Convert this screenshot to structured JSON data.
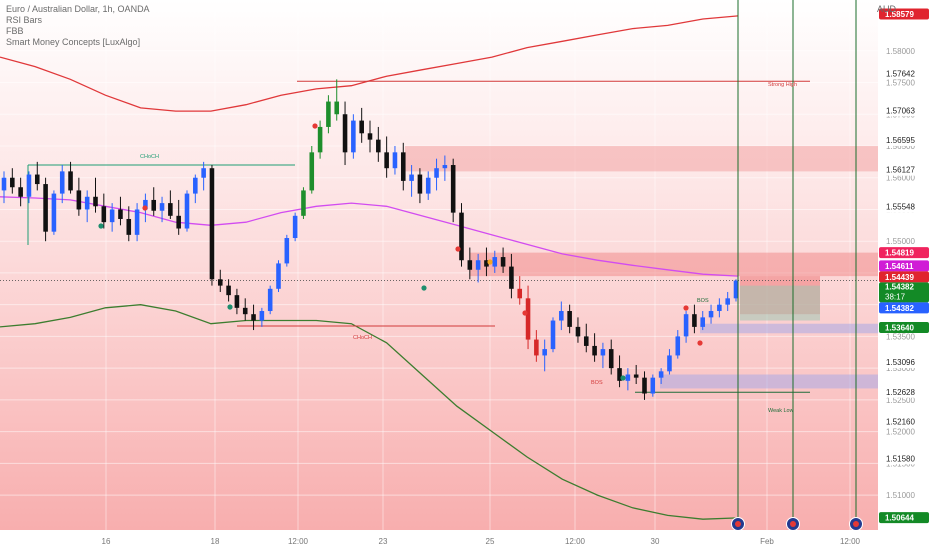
{
  "chart_data": {
    "type": "candlestick",
    "title": "Euro / Australian Dollar, 1h, OANDA",
    "indicators": [
      "RSI Bars",
      "FBB",
      "Smart Money Concepts [LuxAlgo]"
    ],
    "currency": "AUD",
    "ylim": [
      1.5045,
      1.588
    ],
    "price_axis_ticks": [
      "1.58000",
      "1.57500",
      "1.57000",
      "1.56500",
      "1.56000",
      "1.55500",
      "1.55000",
      "1.54500",
      "1.54000",
      "1.53500",
      "1.53000",
      "1.52500",
      "1.52000",
      "1.51500",
      "1.51000"
    ],
    "price_axis_levels": [
      "1.57642",
      "1.57063",
      "1.56595",
      "1.56127",
      "1.55548",
      "1.53675",
      "1.53096",
      "1.52628",
      "1.52160",
      "1.51580"
    ],
    "price_tags": [
      {
        "value": "1.58579",
        "color": "#e0242e"
      },
      {
        "value": "1.54819",
        "color": "#f0245e"
      },
      {
        "value": "1.54611",
        "color": "#d01bd6"
      },
      {
        "value": "1.54439",
        "color": "#e0242e"
      },
      {
        "value": "1.54382",
        "sub": "38:17",
        "color": "#138a26"
      },
      {
        "value": "1.54382",
        "color": "#2962ff"
      },
      {
        "value": "1.53640",
        "color": "#138a26"
      },
      {
        "value": "1.50644",
        "color": "#138a26"
      }
    ],
    "time_axis_labels": [
      "16",
      "18",
      "12:00",
      "23",
      "25",
      "12:00",
      "30",
      "Feb",
      "12:00"
    ],
    "structure_labels": [
      "CHoCH",
      "Strong High",
      "CHoCH",
      "Weak Low",
      "BOS",
      "BOS"
    ],
    "candles": [
      [
        1.558,
        1.561,
        1.556,
        1.56
      ],
      [
        1.56,
        1.5615,
        1.5575,
        1.5585
      ],
      [
        1.5585,
        1.56,
        1.5555,
        1.557
      ],
      [
        1.557,
        1.561,
        1.556,
        1.5605
      ],
      [
        1.5605,
        1.5625,
        1.558,
        1.559
      ],
      [
        1.559,
        1.56,
        1.55,
        1.5515
      ],
      [
        1.5515,
        1.558,
        1.551,
        1.5575
      ],
      [
        1.5575,
        1.562,
        1.556,
        1.561
      ],
      [
        1.561,
        1.5625,
        1.5575,
        1.558
      ],
      [
        1.558,
        1.56,
        1.554,
        1.555
      ],
      [
        1.555,
        1.558,
        1.553,
        1.557
      ],
      [
        1.557,
        1.56,
        1.5545,
        1.5555
      ],
      [
        1.5555,
        1.5575,
        1.552,
        1.553
      ],
      [
        1.553,
        1.556,
        1.5515,
        1.555
      ],
      [
        1.555,
        1.557,
        1.5525,
        1.5535
      ],
      [
        1.5535,
        1.5555,
        1.55,
        1.551
      ],
      [
        1.551,
        1.556,
        1.55,
        1.555
      ],
      [
        1.555,
        1.5575,
        1.553,
        1.5565
      ],
      [
        1.5565,
        1.5585,
        1.554,
        1.5548
      ],
      [
        1.5548,
        1.557,
        1.553,
        1.556
      ],
      [
        1.556,
        1.558,
        1.5535,
        1.554
      ],
      [
        1.554,
        1.5565,
        1.551,
        1.552
      ],
      [
        1.552,
        1.558,
        1.5515,
        1.5575
      ],
      [
        1.5575,
        1.5605,
        1.556,
        1.56
      ],
      [
        1.56,
        1.5625,
        1.558,
        1.5615
      ],
      [
        1.5615,
        1.562,
        1.543,
        1.544
      ],
      [
        1.544,
        1.5455,
        1.542,
        1.543
      ],
      [
        1.543,
        1.544,
        1.5405,
        1.5415
      ],
      [
        1.5415,
        1.5425,
        1.5385,
        1.5395
      ],
      [
        1.5395,
        1.541,
        1.5375,
        1.5385
      ],
      [
        1.5385,
        1.54,
        1.536,
        1.5375
      ],
      [
        1.5375,
        1.5395,
        1.5365,
        1.539
      ],
      [
        1.539,
        1.543,
        1.5385,
        1.5425
      ],
      [
        1.5425,
        1.547,
        1.542,
        1.5465
      ],
      [
        1.5465,
        1.551,
        1.546,
        1.5505
      ],
      [
        1.5505,
        1.5545,
        1.55,
        1.554
      ],
      [
        1.554,
        1.5585,
        1.5535,
        1.558
      ],
      [
        1.558,
        1.565,
        1.5575,
        1.564
      ],
      [
        1.564,
        1.569,
        1.563,
        1.568
      ],
      [
        1.568,
        1.573,
        1.567,
        1.572
      ],
      [
        1.572,
        1.5755,
        1.569,
        1.57
      ],
      [
        1.57,
        1.572,
        1.562,
        1.564
      ],
      [
        1.564,
        1.57,
        1.563,
        1.569
      ],
      [
        1.569,
        1.571,
        1.5655,
        1.567
      ],
      [
        1.567,
        1.569,
        1.564,
        1.566
      ],
      [
        1.566,
        1.568,
        1.5625,
        1.564
      ],
      [
        1.564,
        1.5665,
        1.56,
        1.5615
      ],
      [
        1.5615,
        1.565,
        1.5605,
        1.564
      ],
      [
        1.564,
        1.5655,
        1.558,
        1.5595
      ],
      [
        1.5595,
        1.562,
        1.557,
        1.5605
      ],
      [
        1.5605,
        1.5615,
        1.556,
        1.5575
      ],
      [
        1.5575,
        1.561,
        1.5565,
        1.56
      ],
      [
        1.56,
        1.563,
        1.558,
        1.5615
      ],
      [
        1.5615,
        1.5635,
        1.5595,
        1.562
      ],
      [
        1.562,
        1.563,
        1.553,
        1.5545
      ],
      [
        1.5545,
        1.556,
        1.546,
        1.547
      ],
      [
        1.547,
        1.549,
        1.544,
        1.5455
      ],
      [
        1.5455,
        1.548,
        1.5435,
        1.547
      ],
      [
        1.547,
        1.549,
        1.5445,
        1.546
      ],
      [
        1.546,
        1.5485,
        1.545,
        1.5475
      ],
      [
        1.5475,
        1.549,
        1.545,
        1.546
      ],
      [
        1.546,
        1.548,
        1.541,
        1.5425
      ],
      [
        1.5425,
        1.5445,
        1.54,
        1.541
      ],
      [
        1.541,
        1.543,
        1.533,
        1.5345
      ],
      [
        1.5345,
        1.536,
        1.531,
        1.532
      ],
      [
        1.532,
        1.5345,
        1.5295,
        1.533
      ],
      [
        1.533,
        1.538,
        1.5325,
        1.5375
      ],
      [
        1.5375,
        1.5405,
        1.536,
        1.539
      ],
      [
        1.539,
        1.54,
        1.5355,
        1.5365
      ],
      [
        1.5365,
        1.538,
        1.534,
        1.535
      ],
      [
        1.535,
        1.537,
        1.5325,
        1.5335
      ],
      [
        1.5335,
        1.5355,
        1.531,
        1.532
      ],
      [
        1.532,
        1.534,
        1.53,
        1.533
      ],
      [
        1.533,
        1.5345,
        1.529,
        1.53
      ],
      [
        1.53,
        1.532,
        1.527,
        1.528
      ],
      [
        1.528,
        1.53,
        1.5265,
        1.529
      ],
      [
        1.529,
        1.5305,
        1.5275,
        1.5285
      ],
      [
        1.5285,
        1.5295,
        1.525,
        1.526
      ],
      [
        1.526,
        1.529,
        1.5255,
        1.5285
      ],
      [
        1.5285,
        1.53,
        1.5275,
        1.5295
      ],
      [
        1.5295,
        1.533,
        1.529,
        1.532
      ],
      [
        1.532,
        1.536,
        1.5315,
        1.535
      ],
      [
        1.535,
        1.539,
        1.534,
        1.5385
      ],
      [
        1.5385,
        1.54,
        1.5355,
        1.5365
      ],
      [
        1.5365,
        1.539,
        1.536,
        1.538
      ],
      [
        1.538,
        1.54,
        1.537,
        1.539
      ],
      [
        1.539,
        1.541,
        1.538,
        1.54
      ],
      [
        1.54,
        1.542,
        1.539,
        1.541
      ],
      [
        1.541,
        1.544,
        1.5405,
        1.5438
      ]
    ],
    "bollinger_upper": [
      1.579,
      1.5775,
      1.5755,
      1.573,
      1.571,
      1.5705,
      1.5705,
      1.5715,
      1.573,
      1.574,
      1.5745,
      1.576,
      1.577,
      1.578,
      1.579,
      1.5805,
      1.5815,
      1.5825,
      1.5835,
      1.584,
      1.585,
      1.5855
    ],
    "bollinger_lower": [
      1.5365,
      1.537,
      1.538,
      1.5395,
      1.54,
      1.539,
      1.537,
      1.5375,
      1.5375,
      1.5375,
      1.537,
      1.534,
      1.529,
      1.524,
      1.52,
      1.516,
      1.5125,
      1.51,
      1.508,
      1.5068,
      1.5062,
      1.5064
    ],
    "basis": [
      1.557,
      1.5568,
      1.5565,
      1.5555,
      1.5545,
      1.553,
      1.5525,
      1.553,
      1.5545,
      1.5555,
      1.556,
      1.5555,
      1.554,
      1.5525,
      1.551,
      1.5495,
      1.548,
      1.547,
      1.5462,
      1.5455,
      1.5448,
      1.5445
    ],
    "zones": [
      {
        "top": 1.565,
        "bottom": 1.561,
        "color": "#f3a3a3"
      },
      {
        "top": 1.5482,
        "bottom": 1.5445,
        "color": "#f08c8c"
      },
      {
        "top": 1.537,
        "bottom": 1.5355,
        "color": "#a9a9e6"
      },
      {
        "top": 1.529,
        "bottom": 1.5268,
        "color": "#a9a9e6"
      },
      {
        "top": 1.5445,
        "bottom": 1.5385,
        "color": "#ed7a7a"
      },
      {
        "top": 1.543,
        "bottom": 1.5375,
        "color": "#9ec7b2"
      }
    ]
  }
}
